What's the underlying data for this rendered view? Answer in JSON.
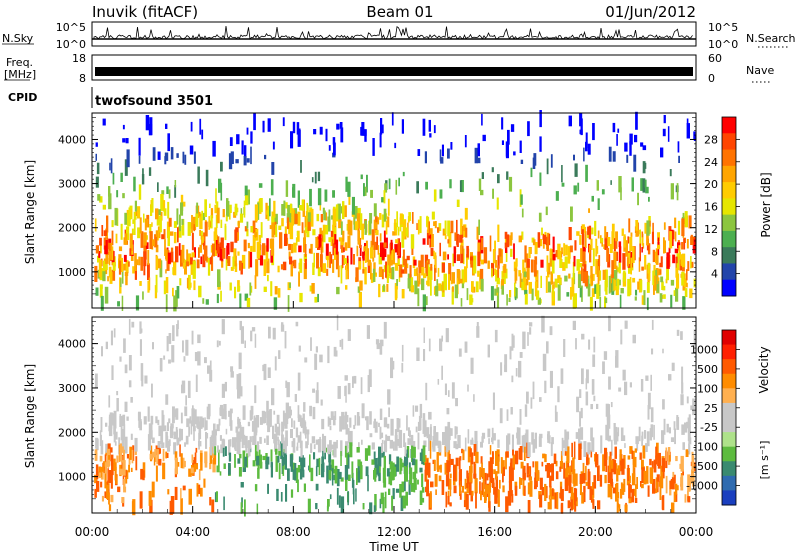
{
  "header": {
    "station": "Inuvik (fitACF)",
    "beam": "Beam 01",
    "date": "01/Jun/2012"
  },
  "top_panels": {
    "nsky": {
      "left_label": "N.Sky",
      "right_label": "N.Search",
      "left_ticks": [
        "10^5",
        "10^0"
      ],
      "right_ticks": [
        "10^5",
        "10^0"
      ]
    },
    "freq": {
      "left_label_1": "Freq.",
      "left_label_2": "[MHz]",
      "right_label": "Nave",
      "left_ticks": [
        "18",
        "8"
      ],
      "right_ticks": [
        "60",
        "0"
      ]
    },
    "cpid": {
      "label": "CPID",
      "text": "twofsound 3501"
    }
  },
  "chart_data": [
    {
      "type": "heatmap",
      "title": "",
      "ylabel": "Slant Range [km]",
      "xlabel": "",
      "ylim": [
        180,
        4600
      ],
      "yticks": [
        "4000",
        "3000",
        "2000",
        "1000"
      ],
      "colorbar": {
        "label": "Power [dB]",
        "range": [
          0,
          32
        ],
        "ticks": [
          "28",
          "24",
          "20",
          "16",
          "12",
          "8",
          "4"
        ],
        "colors": [
          "#0000ff",
          "#2244aa",
          "#3a7a5a",
          "#4caf50",
          "#8cc63f",
          "#e6e600",
          "#ffcc00",
          "#ffa500",
          "#ff7300",
          "#ff4500",
          "#ff0000"
        ]
      }
    },
    {
      "type": "heatmap",
      "title": "",
      "ylabel": "Slant Range [km]",
      "xlabel": "Time UT",
      "xticks": [
        "00:00",
        "04:00",
        "08:00",
        "12:00",
        "16:00",
        "20:00",
        "00:00"
      ],
      "ylim": [
        180,
        4600
      ],
      "yticks": [
        "4000",
        "3000",
        "2000",
        "1000"
      ],
      "colorbar": {
        "label": "Velocity",
        "units": "[m s⁻¹]",
        "ticks": [
          "1000",
          "500",
          "100",
          "25",
          "-25",
          "-100",
          "-500",
          "-1000"
        ],
        "colors": [
          "#1a3fbf",
          "#2f6bb0",
          "#3a8a70",
          "#5dbb3f",
          "#aee28a",
          "#c8c8c8",
          "#c8c8c8",
          "#ffb050",
          "#ff8c00",
          "#ff5a00",
          "#ff2000",
          "#e00000"
        ]
      }
    }
  ]
}
